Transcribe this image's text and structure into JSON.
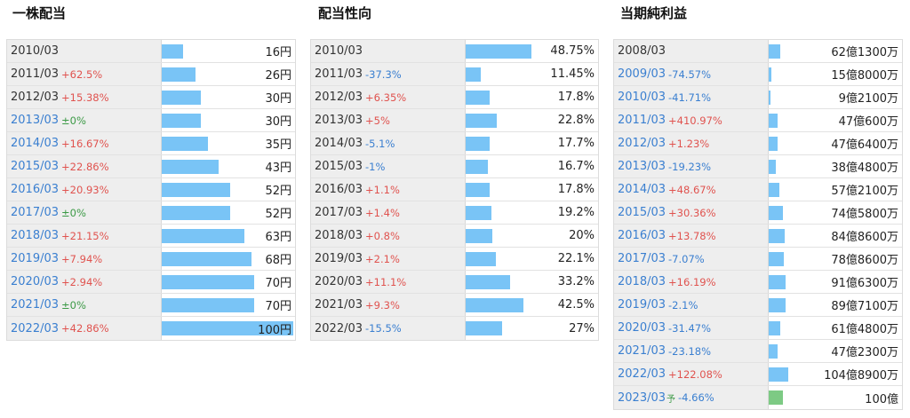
{
  "panels": [
    {
      "title": "一株配当",
      "rows": [
        {
          "year": "2010/03",
          "change": "",
          "value": "16円",
          "v": 16
        },
        {
          "year": "2011/03",
          "change": "+62.5%",
          "value": "26円",
          "v": 26
        },
        {
          "year": "2012/03",
          "change": "+15.38%",
          "value": "30円",
          "v": 30
        },
        {
          "year": "2013/03",
          "change": "±0%",
          "value": "30円",
          "v": 30
        },
        {
          "year": "2014/03",
          "change": "+16.67%",
          "value": "35円",
          "v": 35
        },
        {
          "year": "2015/03",
          "change": "+22.86%",
          "value": "43円",
          "v": 43
        },
        {
          "year": "2016/03",
          "change": "+20.93%",
          "value": "52円",
          "v": 52
        },
        {
          "year": "2017/03",
          "change": "±0%",
          "value": "52円",
          "v": 52
        },
        {
          "year": "2018/03",
          "change": "+21.15%",
          "value": "63円",
          "v": 63
        },
        {
          "year": "2019/03",
          "change": "+7.94%",
          "value": "68円",
          "v": 68
        },
        {
          "year": "2020/03",
          "change": "+2.94%",
          "value": "70円",
          "v": 70
        },
        {
          "year": "2021/03",
          "change": "±0%",
          "value": "70円",
          "v": 70
        },
        {
          "year": "2022/03",
          "change": "+42.86%",
          "value": "100円",
          "v": 100
        }
      ]
    },
    {
      "title": "配当性向",
      "rows": [
        {
          "year": "2010/03",
          "change": "",
          "value": "48.75%",
          "v": 48.75
        },
        {
          "year": "2011/03",
          "change": "-37.3%",
          "value": "11.45%",
          "v": 11.45
        },
        {
          "year": "2012/03",
          "change": "+6.35%",
          "value": "17.8%",
          "v": 17.8
        },
        {
          "year": "2013/03",
          "change": "+5%",
          "value": "22.8%",
          "v": 22.8
        },
        {
          "year": "2014/03",
          "change": "-5.1%",
          "value": "17.7%",
          "v": 17.7
        },
        {
          "year": "2015/03",
          "change": "-1%",
          "value": "16.7%",
          "v": 16.7
        },
        {
          "year": "2016/03",
          "change": "+1.1%",
          "value": "17.8%",
          "v": 17.8
        },
        {
          "year": "2017/03",
          "change": "+1.4%",
          "value": "19.2%",
          "v": 19.2
        },
        {
          "year": "2018/03",
          "change": "+0.8%",
          "value": "20%",
          "v": 20
        },
        {
          "year": "2019/03",
          "change": "+2.1%",
          "value": "22.1%",
          "v": 22.1
        },
        {
          "year": "2020/03",
          "change": "+11.1%",
          "value": "33.2%",
          "v": 33.2
        },
        {
          "year": "2021/03",
          "change": "+9.3%",
          "value": "42.5%",
          "v": 42.5
        },
        {
          "year": "2022/03",
          "change": "-15.5%",
          "value": "27%",
          "v": 27
        }
      ]
    },
    {
      "title": "当期純利益",
      "rows": [
        {
          "year": "2008/03",
          "change": "",
          "value": "62億1300万",
          "v": 62.13
        },
        {
          "year": "2009/03",
          "change": "-74.57%",
          "value": "15億8000万",
          "v": 15.8
        },
        {
          "year": "2010/03",
          "change": "-41.71%",
          "value": "9億2100万",
          "v": 9.21
        },
        {
          "year": "2011/03",
          "change": "+410.97%",
          "value": "47億600万",
          "v": 47.06
        },
        {
          "year": "2012/03",
          "change": "+1.23%",
          "value": "47億6400万",
          "v": 47.64
        },
        {
          "year": "2013/03",
          "change": "-19.23%",
          "value": "38億4800万",
          "v": 38.48
        },
        {
          "year": "2014/03",
          "change": "+48.67%",
          "value": "57億2100万",
          "v": 57.21
        },
        {
          "year": "2015/03",
          "change": "+30.36%",
          "value": "74億5800万",
          "v": 74.58
        },
        {
          "year": "2016/03",
          "change": "+13.78%",
          "value": "84億8600万",
          "v": 84.86
        },
        {
          "year": "2017/03",
          "change": "-7.07%",
          "value": "78億8600万",
          "v": 78.86
        },
        {
          "year": "2018/03",
          "change": "+16.19%",
          "value": "91億6300万",
          "v": 91.63
        },
        {
          "year": "2019/03",
          "change": "-2.1%",
          "value": "89億7100万",
          "v": 89.71
        },
        {
          "year": "2020/03",
          "change": "-31.47%",
          "value": "61億4800万",
          "v": 61.48
        },
        {
          "year": "2021/03",
          "change": "-23.18%",
          "value": "47億2300万",
          "v": 47.23
        },
        {
          "year": "2022/03",
          "change": "+122.08%",
          "value": "104億8900万",
          "v": 104.89
        },
        {
          "year": "2023/03",
          "yo": "予",
          "change": "-4.66%",
          "value": "100億",
          "v": 100,
          "forecast": true
        }
      ]
    }
  ],
  "colors": {
    "bar": "#79c4f6",
    "forecast_bar": "#7dca84",
    "up": "#e0534f",
    "down": "#3a7fd0",
    "zero": "#3c9a46"
  },
  "chart_data": [
    {
      "type": "bar",
      "title": "一株配当",
      "categories": [
        "2010/03",
        "2011/03",
        "2012/03",
        "2013/03",
        "2014/03",
        "2015/03",
        "2016/03",
        "2017/03",
        "2018/03",
        "2019/03",
        "2020/03",
        "2021/03",
        "2022/03"
      ],
      "values": [
        16,
        26,
        30,
        30,
        35,
        43,
        52,
        52,
        63,
        68,
        70,
        70,
        100
      ],
      "unit": "円"
    },
    {
      "type": "bar",
      "title": "配当性向",
      "categories": [
        "2010/03",
        "2011/03",
        "2012/03",
        "2013/03",
        "2014/03",
        "2015/03",
        "2016/03",
        "2017/03",
        "2018/03",
        "2019/03",
        "2020/03",
        "2021/03",
        "2022/03"
      ],
      "values": [
        48.75,
        11.45,
        17.8,
        22.8,
        17.7,
        16.7,
        17.8,
        19.2,
        20,
        22.1,
        33.2,
        42.5,
        27
      ],
      "unit": "%"
    },
    {
      "type": "bar",
      "title": "当期純利益",
      "categories": [
        "2008/03",
        "2009/03",
        "2010/03",
        "2011/03",
        "2012/03",
        "2013/03",
        "2014/03",
        "2015/03",
        "2016/03",
        "2017/03",
        "2018/03",
        "2019/03",
        "2020/03",
        "2021/03",
        "2022/03",
        "2023/03予"
      ],
      "values": [
        62.13,
        15.8,
        9.21,
        47.06,
        47.64,
        38.48,
        57.21,
        74.58,
        84.86,
        78.86,
        91.63,
        89.71,
        61.48,
        47.23,
        104.89,
        100
      ],
      "unit": "億円"
    }
  ]
}
